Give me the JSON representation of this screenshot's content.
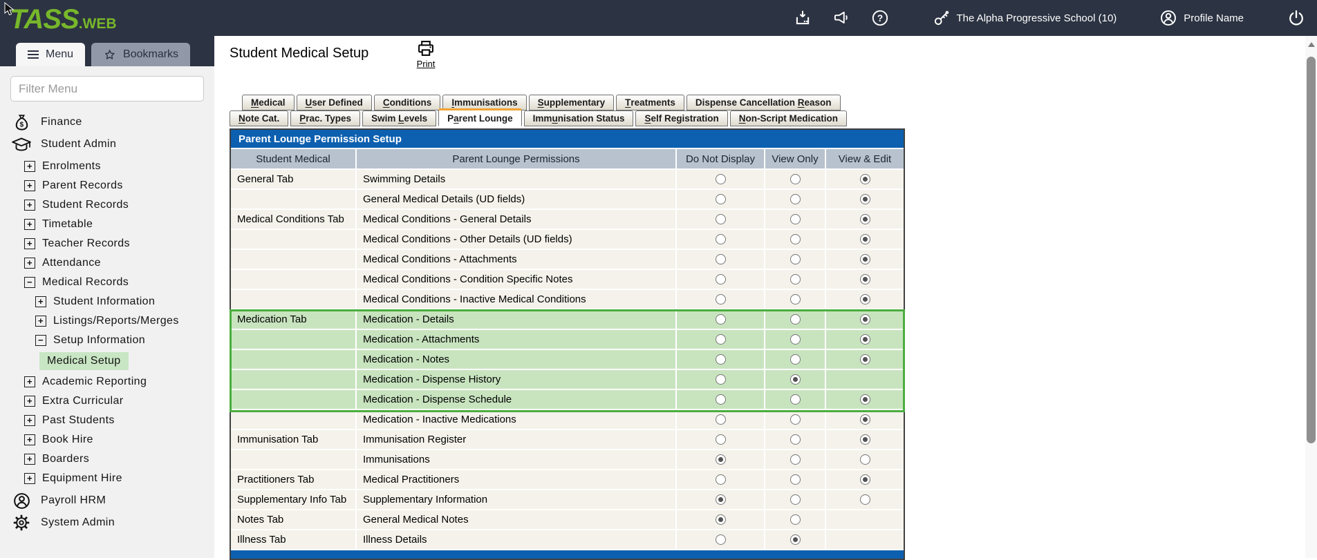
{
  "topbar": {
    "school_label": "The Alpha Progressive School (10)",
    "profile_label": "Profile Name"
  },
  "logo": {
    "tass": "TASS",
    "web": ".WEB"
  },
  "sidebar": {
    "menu_tab": "Menu",
    "bookmarks_tab": "Bookmarks",
    "filter_placeholder": "Filter Menu",
    "items": [
      {
        "label": "Finance",
        "icon": "money-bag",
        "level": 0
      },
      {
        "label": "Student Admin",
        "icon": "graduation-cap",
        "level": 0
      },
      {
        "label": "Enrolments",
        "expand": "plus",
        "level": 1
      },
      {
        "label": "Parent Records",
        "expand": "plus",
        "level": 1
      },
      {
        "label": "Student Records",
        "expand": "plus",
        "level": 1
      },
      {
        "label": "Timetable",
        "expand": "plus",
        "level": 1
      },
      {
        "label": "Teacher Records",
        "expand": "plus",
        "level": 1
      },
      {
        "label": "Attendance",
        "expand": "plus",
        "level": 1
      },
      {
        "label": "Medical Records",
        "expand": "minus",
        "level": 1
      },
      {
        "label": "Student Information",
        "expand": "plus",
        "level": 2
      },
      {
        "label": "Listings/Reports/Merges",
        "expand": "plus",
        "level": 2
      },
      {
        "label": "Setup Information",
        "expand": "minus",
        "level": 2
      },
      {
        "label": "Medical Setup",
        "level": 3,
        "active": true
      },
      {
        "label": "Academic Reporting",
        "expand": "plus",
        "level": 1
      },
      {
        "label": "Extra Curricular",
        "expand": "plus",
        "level": 1
      },
      {
        "label": "Past Students",
        "expand": "plus",
        "level": 1
      },
      {
        "label": "Book Hire",
        "expand": "plus",
        "level": 1
      },
      {
        "label": "Boarders",
        "expand": "plus",
        "level": 1
      },
      {
        "label": "Equipment Hire",
        "expand": "plus",
        "level": 1
      },
      {
        "label": "Payroll HRM",
        "icon": "person",
        "level": 0
      },
      {
        "label": "System Admin",
        "icon": "gear",
        "level": 0
      }
    ]
  },
  "main": {
    "title": "Student Medical Setup",
    "print_label": "Print",
    "tabs_row1": [
      {
        "pre": "",
        "key": "M",
        "post": "edical"
      },
      {
        "pre": "",
        "key": "U",
        "post": "ser Defined"
      },
      {
        "pre": "",
        "key": "C",
        "post": "onditions"
      },
      {
        "pre": "",
        "key": "I",
        "post": "mmunisations"
      },
      {
        "pre": "",
        "key": "S",
        "post": "upplementary"
      },
      {
        "pre": "",
        "key": "T",
        "post": "reatments"
      },
      {
        "pre": "Dispense Cancellation ",
        "key": "R",
        "post": "eason"
      }
    ],
    "tabs_row2": [
      {
        "pre": "",
        "key": "N",
        "post": "ote Cat."
      },
      {
        "pre": "",
        "key": "P",
        "post": "rac. Types"
      },
      {
        "pre": "Swim ",
        "key": "L",
        "post": "evels"
      },
      {
        "pre": "P",
        "key": "a",
        "post": "rent Lounge",
        "active": true
      },
      {
        "pre": "Imm",
        "key": "u",
        "post": "nisation Status"
      },
      {
        "pre": "",
        "key": "S",
        "post": "elf Registration"
      },
      {
        "pre": "",
        "key": "N",
        "post": "on-Script Medication"
      }
    ],
    "table": {
      "title": "Parent Lounge Permission Setup",
      "columns": [
        "Student Medical",
        "Parent Lounge Permissions",
        "Do Not Display",
        "View Only",
        "View & Edit"
      ],
      "rows": [
        {
          "group": "General Tab",
          "permission": "Swimming Details",
          "selected": "edit"
        },
        {
          "group": "",
          "permission": "General Medical Details (UD fields)",
          "selected": "edit"
        },
        {
          "group": "Medical Conditions Tab",
          "permission": "Medical Conditions - General Details",
          "selected": "edit"
        },
        {
          "group": "",
          "permission": "Medical Conditions - Other Details (UD fields)",
          "selected": "edit"
        },
        {
          "group": "",
          "permission": "Medical Conditions - Attachments",
          "selected": "edit"
        },
        {
          "group": "",
          "permission": "Medical Conditions - Condition Specific Notes",
          "selected": "edit"
        },
        {
          "group": "",
          "permission": "Medical Conditions - Inactive Medical Conditions",
          "selected": "edit"
        },
        {
          "group": "Medication Tab",
          "permission": "Medication - Details",
          "selected": "edit",
          "highlight": true
        },
        {
          "group": "",
          "permission": "Medication - Attachments",
          "selected": "edit",
          "highlight": true
        },
        {
          "group": "",
          "permission": "Medication - Notes",
          "selected": "edit",
          "highlight": true
        },
        {
          "group": "",
          "permission": "Medication - Dispense History",
          "selected": "view",
          "no_edit_radio": true,
          "highlight": true
        },
        {
          "group": "",
          "permission": "Medication - Dispense Schedule",
          "selected": "edit",
          "highlight": true
        },
        {
          "group": "",
          "permission": "Medication - Inactive Medications",
          "selected": "edit"
        },
        {
          "group": "Immunisation Tab",
          "permission": "Immunisation Register",
          "selected": "edit"
        },
        {
          "group": "",
          "permission": "Immunisations",
          "selected": "dnd"
        },
        {
          "group": "Practitioners Tab",
          "permission": "Medical Practitioners",
          "selected": "edit"
        },
        {
          "group": "Supplementary Info Tab",
          "permission": "Supplementary Information",
          "selected": "dnd"
        },
        {
          "group": "Notes Tab",
          "permission": "General Medical Notes",
          "selected": "dnd",
          "no_edit_radio": true
        },
        {
          "group": "Illness Tab",
          "permission": "Illness Details",
          "selected": "view",
          "no_edit_radio": true
        }
      ]
    }
  },
  "colors": {
    "brand_green": "#77b72b",
    "topbar_navy": "#2c3342",
    "table_header_blue": "#0d60af",
    "column_header_gray": "#b7c2ce",
    "row_beige": "#f4f2ea",
    "highlight_green_bg": "#c8e4bf",
    "highlight_green_border": "#4aad3e",
    "active_tab_orange": "#f2a331",
    "active_nav_green": "#c9e6c4"
  }
}
